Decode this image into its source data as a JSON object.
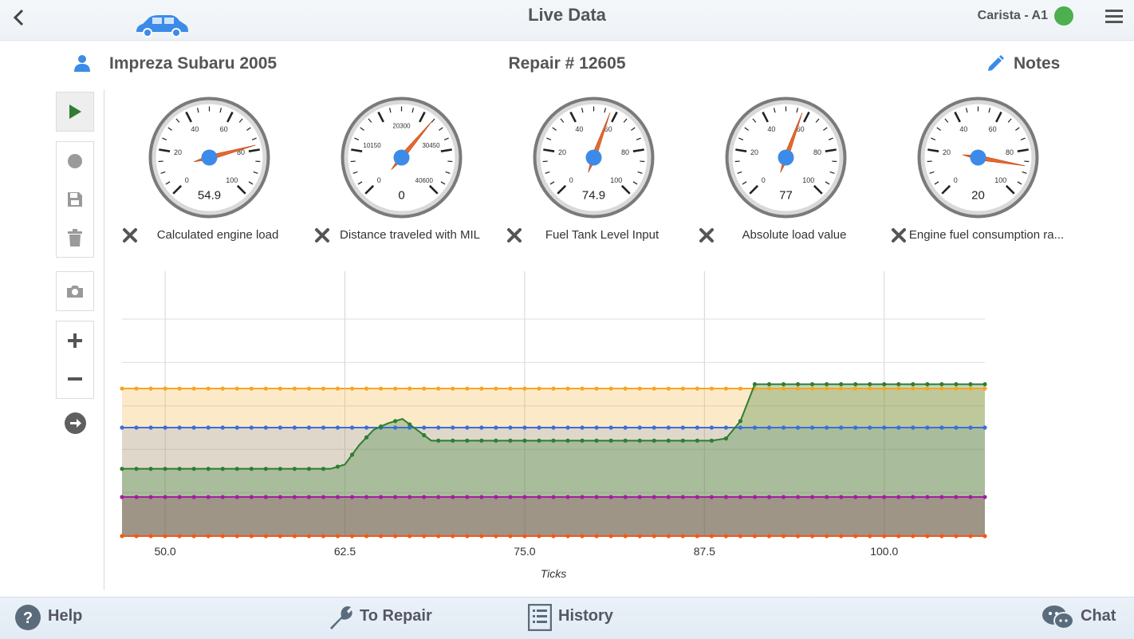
{
  "header": {
    "title": "Live Data",
    "connection": "Carista - A1",
    "connection_color": "#4caf50",
    "accent": "#3d8be8"
  },
  "vehicle": {
    "name": "Impreza Subaru 2005",
    "repair": "Repair # 12605",
    "notes": "Notes"
  },
  "toolbar": {
    "icons": [
      "play-icon",
      "record-icon",
      "save-icon",
      "delete-icon",
      "camera-icon",
      "zoom-in-icon",
      "zoom-out-icon",
      "forward-icon"
    ]
  },
  "gauges": [
    {
      "label": "Calculated engine load",
      "value": "54.9",
      "ticks": [
        "0",
        "20",
        "40",
        "60",
        "80",
        "100"
      ]
    },
    {
      "label": "Distance traveled with MIL",
      "value": "0",
      "ticks": [
        "0",
        "10150",
        "20300",
        "30450",
        "40600"
      ]
    },
    {
      "label": "Fuel Tank Level Input",
      "value": "74.9",
      "ticks": [
        "0",
        "20",
        "40",
        "60",
        "80",
        "100"
      ]
    },
    {
      "label": "Absolute load value",
      "value": "77",
      "ticks": [
        "0",
        "20",
        "40",
        "60",
        "80",
        "100"
      ]
    },
    {
      "label": "Engine fuel consumption ra...",
      "value": "20",
      "ticks": [
        "0",
        "20",
        "40",
        "60",
        "80",
        "100"
      ]
    }
  ],
  "chart_data": {
    "type": "line",
    "xlabel": "Ticks",
    "ylabel": "",
    "x_ticks": [
      "50.0",
      "62.5",
      "75.0",
      "87.5",
      "100.0"
    ],
    "xlim": [
      47,
      107
    ],
    "ylim": [
      0,
      1
    ],
    "grid": true,
    "series": [
      {
        "color": "#f5a623",
        "fill": "rgba(245,166,35,0.25)",
        "points": [
          [
            47,
            0.68
          ],
          [
            107,
            0.68
          ]
        ]
      },
      {
        "color": "#3a6fd8",
        "fill": "rgba(58,111,216,0.15)",
        "points": [
          [
            47,
            0.5
          ],
          [
            107,
            0.5
          ]
        ]
      },
      {
        "color": "#2e7d32",
        "fill": "rgba(46,125,50,0.30)",
        "points": [
          [
            47,
            0.31
          ],
          [
            61.5,
            0.31
          ],
          [
            62.5,
            0.33
          ],
          [
            63.5,
            0.42
          ],
          [
            64.5,
            0.49
          ],
          [
            65.5,
            0.52
          ],
          [
            66.5,
            0.54
          ],
          [
            67.5,
            0.49
          ],
          [
            68.5,
            0.44
          ],
          [
            88,
            0.44
          ],
          [
            89,
            0.45
          ],
          [
            90,
            0.53
          ],
          [
            91,
            0.7
          ],
          [
            107,
            0.7
          ]
        ]
      },
      {
        "color": "#a020a0",
        "fill": "rgba(128,30,70,0.25)",
        "points": [
          [
            47,
            0.18
          ],
          [
            107,
            0.18
          ]
        ]
      },
      {
        "color": "#f05a1a",
        "fill": "rgba(240,90,26,0.15)",
        "points": [
          [
            47,
            0.0
          ],
          [
            107,
            0.0
          ]
        ]
      }
    ]
  },
  "footer": {
    "help": "Help",
    "to_repair": "To Repair",
    "history": "History",
    "chat": "Chat"
  }
}
